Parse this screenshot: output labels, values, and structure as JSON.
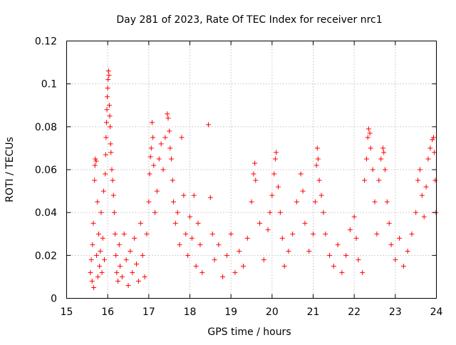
{
  "chart_data": {
    "type": "scatter",
    "title": "Day 281 of 2023, Rate Of TEC Index for receiver nrc1",
    "xlabel": "GPS time / hours",
    "ylabel": "ROTI / TECUs",
    "xlim": [
      15,
      24
    ],
    "ylim": [
      0,
      0.12
    ],
    "x_ticks": [
      15,
      16,
      17,
      18,
      19,
      20,
      21,
      22,
      23,
      24
    ],
    "x_tick_labels": [
      "15",
      "16",
      "17",
      "18",
      "19",
      "20",
      "21",
      "22",
      "23",
      "24"
    ],
    "y_ticks": [
      0,
      0.02,
      0.04,
      0.06,
      0.08,
      0.1,
      0.12
    ],
    "y_tick_labels": [
      "0",
      "0.02",
      "0.04",
      "0.06",
      "0.08",
      "0.1",
      "0.12"
    ],
    "grid": true,
    "legend": "none",
    "marker": "plus",
    "color": "#ff0000",
    "series": [
      {
        "name": "",
        "points": [
          [
            15.58,
            0.012
          ],
          [
            15.6,
            0.018
          ],
          [
            15.62,
            0.008
          ],
          [
            15.63,
            0.025
          ],
          [
            15.65,
            0.035
          ],
          [
            15.66,
            0.005
          ],
          [
            15.68,
            0.055
          ],
          [
            15.69,
            0.062
          ],
          [
            15.7,
            0.065
          ],
          [
            15.72,
            0.064
          ],
          [
            15.73,
            0.02
          ],
          [
            15.75,
            0.045
          ],
          [
            15.76,
            0.01
          ],
          [
            15.78,
            0.03
          ],
          [
            15.8,
            0.015
          ],
          [
            15.82,
            0.022
          ],
          [
            15.84,
            0.04
          ],
          [
            15.86,
            0.012
          ],
          [
            15.88,
            0.028
          ],
          [
            15.9,
            0.05
          ],
          [
            15.92,
            0.018
          ],
          [
            15.94,
            0.058
          ],
          [
            15.95,
            0.067
          ],
          [
            15.96,
            0.075
          ],
          [
            15.97,
            0.082
          ],
          [
            15.98,
            0.088
          ],
          [
            15.99,
            0.094
          ],
          [
            16.0,
            0.098
          ],
          [
            16.01,
            0.102
          ],
          [
            16.02,
            0.106
          ],
          [
            16.03,
            0.104
          ],
          [
            16.04,
            0.09
          ],
          [
            16.05,
            0.085
          ],
          [
            16.06,
            0.08
          ],
          [
            16.07,
            0.072
          ],
          [
            16.08,
            0.068
          ],
          [
            16.1,
            0.06
          ],
          [
            16.12,
            0.055
          ],
          [
            16.14,
            0.048
          ],
          [
            16.16,
            0.04
          ],
          [
            16.18,
            0.03
          ],
          [
            16.2,
            0.02
          ],
          [
            16.22,
            0.012
          ],
          [
            16.25,
            0.008
          ],
          [
            16.28,
            0.025
          ],
          [
            16.3,
            0.015
          ],
          [
            16.35,
            0.01
          ],
          [
            16.4,
            0.03
          ],
          [
            16.45,
            0.018
          ],
          [
            16.5,
            0.006
          ],
          [
            16.55,
            0.022
          ],
          [
            16.6,
            0.012
          ],
          [
            16.65,
            0.028
          ],
          [
            16.7,
            0.016
          ],
          [
            16.75,
            0.008
          ],
          [
            16.8,
            0.035
          ],
          [
            16.85,
            0.02
          ],
          [
            16.9,
            0.01
          ],
          [
            16.95,
            0.03
          ],
          [
            17.0,
            0.045
          ],
          [
            17.02,
            0.058
          ],
          [
            17.04,
            0.066
          ],
          [
            17.06,
            0.07
          ],
          [
            17.08,
            0.082
          ],
          [
            17.1,
            0.075
          ],
          [
            17.12,
            0.062
          ],
          [
            17.15,
            0.04
          ],
          [
            17.2,
            0.05
          ],
          [
            17.25,
            0.065
          ],
          [
            17.3,
            0.072
          ],
          [
            17.35,
            0.06
          ],
          [
            17.4,
            0.075
          ],
          [
            17.45,
            0.086
          ],
          [
            17.47,
            0.084
          ],
          [
            17.5,
            0.078
          ],
          [
            17.52,
            0.07
          ],
          [
            17.55,
            0.065
          ],
          [
            17.58,
            0.055
          ],
          [
            17.6,
            0.045
          ],
          [
            17.65,
            0.035
          ],
          [
            17.7,
            0.04
          ],
          [
            17.75,
            0.025
          ],
          [
            17.8,
            0.075
          ],
          [
            17.85,
            0.048
          ],
          [
            17.9,
            0.03
          ],
          [
            17.95,
            0.02
          ],
          [
            18.0,
            0.038
          ],
          [
            18.05,
            0.028
          ],
          [
            18.1,
            0.048
          ],
          [
            18.15,
            0.015
          ],
          [
            18.2,
            0.035
          ],
          [
            18.25,
            0.025
          ],
          [
            18.3,
            0.012
          ],
          [
            18.45,
            0.081
          ],
          [
            18.5,
            0.047
          ],
          [
            18.55,
            0.03
          ],
          [
            18.6,
            0.018
          ],
          [
            18.7,
            0.025
          ],
          [
            18.8,
            0.01
          ],
          [
            18.9,
            0.02
          ],
          [
            19.0,
            0.03
          ],
          [
            19.1,
            0.012
          ],
          [
            19.2,
            0.022
          ],
          [
            19.3,
            0.015
          ],
          [
            19.4,
            0.028
          ],
          [
            19.5,
            0.045
          ],
          [
            19.55,
            0.058
          ],
          [
            19.58,
            0.063
          ],
          [
            19.6,
            0.055
          ],
          [
            19.7,
            0.035
          ],
          [
            19.8,
            0.018
          ],
          [
            19.9,
            0.032
          ],
          [
            19.95,
            0.04
          ],
          [
            20.0,
            0.048
          ],
          [
            20.05,
            0.058
          ],
          [
            20.08,
            0.065
          ],
          [
            20.1,
            0.068
          ],
          [
            20.15,
            0.052
          ],
          [
            20.2,
            0.04
          ],
          [
            20.25,
            0.028
          ],
          [
            20.3,
            0.015
          ],
          [
            20.4,
            0.022
          ],
          [
            20.5,
            0.03
          ],
          [
            20.6,
            0.045
          ],
          [
            20.7,
            0.058
          ],
          [
            20.75,
            0.05
          ],
          [
            20.8,
            0.035
          ],
          [
            20.9,
            0.022
          ],
          [
            21.0,
            0.03
          ],
          [
            21.05,
            0.045
          ],
          [
            21.08,
            0.062
          ],
          [
            21.1,
            0.07
          ],
          [
            21.12,
            0.065
          ],
          [
            21.15,
            0.055
          ],
          [
            21.2,
            0.048
          ],
          [
            21.25,
            0.04
          ],
          [
            21.3,
            0.03
          ],
          [
            21.4,
            0.02
          ],
          [
            21.5,
            0.015
          ],
          [
            21.6,
            0.025
          ],
          [
            21.7,
            0.012
          ],
          [
            21.8,
            0.02
          ],
          [
            21.9,
            0.032
          ],
          [
            22.0,
            0.038
          ],
          [
            22.05,
            0.028
          ],
          [
            22.1,
            0.018
          ],
          [
            22.2,
            0.012
          ],
          [
            22.25,
            0.055
          ],
          [
            22.3,
            0.065
          ],
          [
            22.33,
            0.075
          ],
          [
            22.35,
            0.079
          ],
          [
            22.38,
            0.077
          ],
          [
            22.4,
            0.07
          ],
          [
            22.45,
            0.06
          ],
          [
            22.5,
            0.045
          ],
          [
            22.55,
            0.03
          ],
          [
            22.6,
            0.055
          ],
          [
            22.65,
            0.065
          ],
          [
            22.7,
            0.07
          ],
          [
            22.72,
            0.068
          ],
          [
            22.75,
            0.06
          ],
          [
            22.8,
            0.045
          ],
          [
            22.85,
            0.035
          ],
          [
            22.9,
            0.025
          ],
          [
            23.0,
            0.018
          ],
          [
            23.1,
            0.028
          ],
          [
            23.2,
            0.015
          ],
          [
            23.3,
            0.022
          ],
          [
            23.4,
            0.03
          ],
          [
            23.5,
            0.04
          ],
          [
            23.55,
            0.055
          ],
          [
            23.6,
            0.06
          ],
          [
            23.65,
            0.048
          ],
          [
            23.7,
            0.038
          ],
          [
            23.75,
            0.052
          ],
          [
            23.8,
            0.065
          ],
          [
            23.85,
            0.07
          ],
          [
            23.9,
            0.074
          ],
          [
            23.93,
            0.075
          ],
          [
            23.95,
            0.068
          ],
          [
            23.97,
            0.055
          ],
          [
            23.99,
            0.04
          ]
        ]
      }
    ]
  }
}
